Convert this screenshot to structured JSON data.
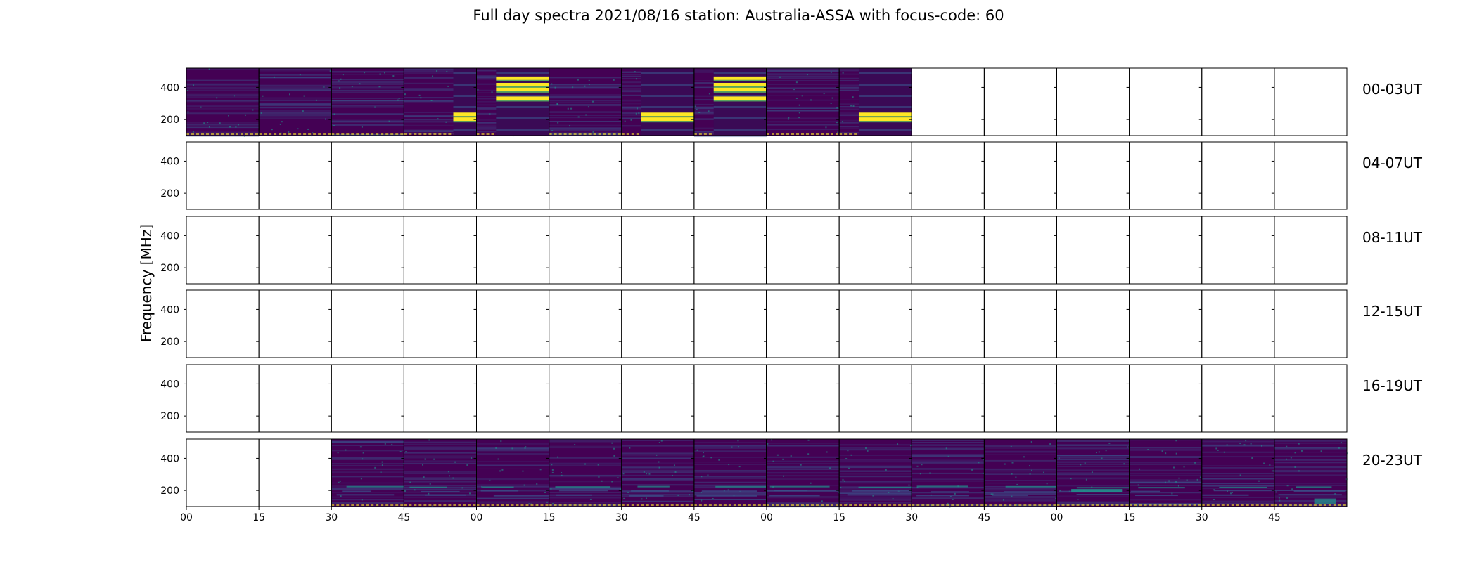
{
  "chart_data": {
    "type": "heatmap",
    "title": "Full day spectra 2021/08/16 station: Australia-ASSA with focus-code: 60",
    "ylabel": "Frequency [MHz]",
    "xlabel": "",
    "yticks": [
      200,
      400
    ],
    "ylim": [
      100,
      520
    ],
    "rows": [
      {
        "label": "00-03UT",
        "filled_panels": [
          0,
          1,
          2,
          3,
          4,
          5,
          6,
          7,
          8,
          9
        ]
      },
      {
        "label": "04-07UT",
        "filled_panels": []
      },
      {
        "label": "08-11UT",
        "filled_panels": []
      },
      {
        "label": "12-15UT",
        "filled_panels": []
      },
      {
        "label": "16-19UT",
        "filled_panels": []
      },
      {
        "label": "20-23UT",
        "filled_panels": [
          2,
          3,
          4,
          5,
          6,
          7,
          8,
          9,
          10,
          11,
          12,
          13,
          14,
          15
        ]
      }
    ],
    "panels_per_row": 16,
    "panel_minutes": 15,
    "xtick_labels": [
      "00",
      "15",
      "30",
      "45",
      "00",
      "15",
      "30",
      "45",
      "00",
      "15",
      "30",
      "45",
      "00",
      "15",
      "30",
      "45"
    ],
    "colormap": [
      "#440154",
      "#3b528b",
      "#21918c",
      "#5ec962",
      "#fde725"
    ],
    "bursts": [
      {
        "row": 0,
        "panel": 3,
        "start_frac": 0.68,
        "freqs": [
          230,
          200
        ]
      },
      {
        "row": 0,
        "panel": 4,
        "start_frac": 0.27,
        "freqs": [
          455,
          415,
          385,
          330
        ]
      },
      {
        "row": 0,
        "panel": 6,
        "start_frac": 0.27,
        "freqs": [
          230,
          200
        ]
      },
      {
        "row": 0,
        "panel": 7,
        "start_frac": 0.27,
        "freqs": [
          455,
          415,
          385,
          330
        ]
      },
      {
        "row": 0,
        "panel": 9,
        "start_frac": 0.27,
        "freqs": [
          230,
          200
        ]
      }
    ]
  }
}
